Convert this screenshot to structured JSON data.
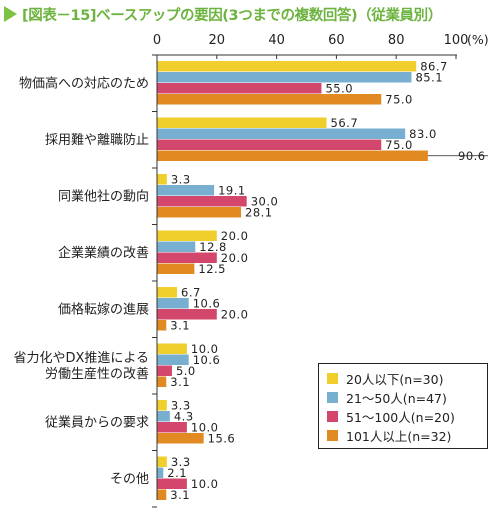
{
  "title": "[図表－15]ベースアップの要因(3つまでの複数回答)（従業員別）",
  "chart_data": {
    "type": "bar",
    "orientation": "horizontal",
    "title": "[図表－15]ベースアップの要因(3つまでの複数回答)（従業員別）",
    "xlabel": "",
    "ylabel": "",
    "axis_unit": "(%)",
    "xlim": [
      0,
      100
    ],
    "x_ticks": [
      "0",
      "20",
      "40",
      "60",
      "80",
      "100"
    ],
    "grid": false,
    "legend_position": "bottom-right",
    "categories": [
      [
        "物価高への対応のため"
      ],
      [
        "採用難や離職防止"
      ],
      [
        "同業他社の動向"
      ],
      [
        "企業業績の改善"
      ],
      [
        "価格転嫁の進展"
      ],
      [
        "省力化やDX推進による",
        "労働生産性の改善"
      ],
      [
        "従業員からの要求"
      ],
      [
        "その他"
      ]
    ],
    "series": [
      {
        "name": "20人以下(n=30)",
        "color": "#f0cf2c",
        "values": [
          86.7,
          56.7,
          3.3,
          20.0,
          6.7,
          10.0,
          3.3,
          3.3
        ]
      },
      {
        "name": "21～50人(n=47)",
        "color": "#78afd0",
        "values": [
          85.1,
          83.0,
          19.1,
          12.8,
          10.6,
          10.6,
          4.3,
          2.1
        ]
      },
      {
        "name": "51～100人(n=20)",
        "color": "#d2476b",
        "values": [
          55.0,
          75.0,
          30.0,
          20.0,
          20.0,
          5.0,
          10.0,
          10.0
        ]
      },
      {
        "name": "101人以上(n=32)",
        "color": "#e08a21",
        "values": [
          75.0,
          90.6,
          28.1,
          12.5,
          3.1,
          3.1,
          15.6,
          3.1
        ]
      }
    ]
  }
}
